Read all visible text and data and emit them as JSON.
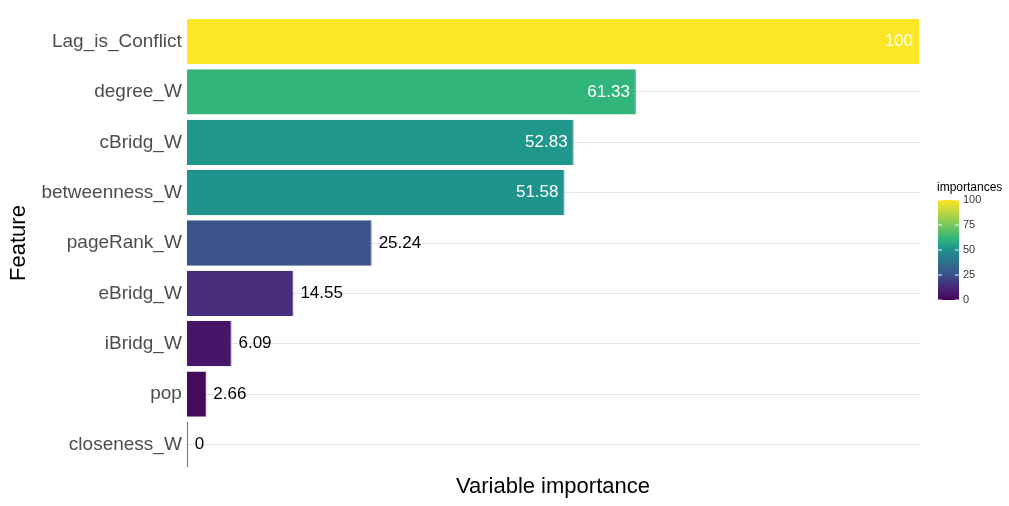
{
  "chart_data": {
    "type": "bar",
    "orientation": "horizontal",
    "xlabel": "Variable importance",
    "ylabel": "Feature",
    "legend_title": "importances",
    "categories": [
      "Lag_is_Conflict",
      "degree_W",
      "cBridg_W",
      "betweenness_W",
      "pageRank_W",
      "eBridg_W",
      "iBridg_W",
      "pop",
      "closeness_W"
    ],
    "values": [
      100,
      61.33,
      52.83,
      51.58,
      25.24,
      14.55,
      6.09,
      2.66,
      0
    ],
    "colors": [
      "#fde725",
      "#31b57b",
      "#1f988b",
      "#20938c",
      "#3b528b",
      "#472d7b",
      "#481668",
      "#450b5a",
      "#440154"
    ],
    "xlim": [
      0,
      100
    ],
    "clim": [
      0,
      100
    ],
    "cticks": [
      0,
      25,
      50,
      75,
      100
    ],
    "grid": "y",
    "tick_labels": "y",
    "data_labels": true
  }
}
